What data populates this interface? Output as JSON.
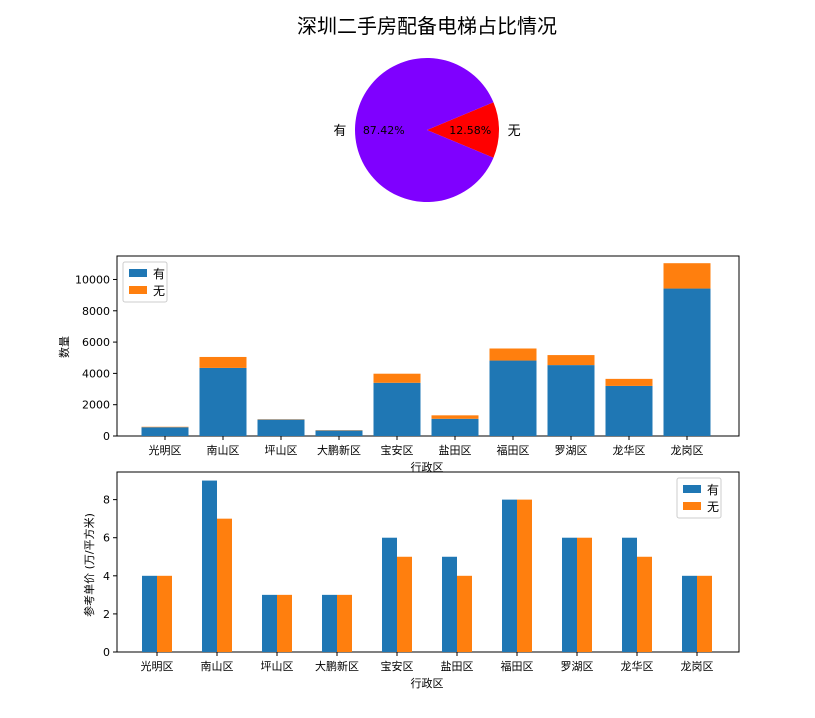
{
  "chart_data": [
    {
      "type": "pie",
      "title": "深圳二手房配备电梯占比情况",
      "labels": [
        "有",
        "无"
      ],
      "values": [
        87.42,
        12.58
      ],
      "value_labels": [
        "87.42%",
        "12.58%"
      ],
      "colors": [
        "#7f00ff",
        "#ff0000"
      ]
    },
    {
      "type": "bar",
      "stacked": true,
      "categories": [
        "光明区",
        "南山区",
        "坪山区",
        "大鹏新区",
        "宝安区",
        "盐田区",
        "福田区",
        "罗湖区",
        "龙华区",
        "龙岗区"
      ],
      "series": [
        {
          "name": "有",
          "color": "#1f77b4",
          "values": [
            560,
            4350,
            1050,
            350,
            3400,
            1100,
            4820,
            4530,
            3200,
            9420
          ]
        },
        {
          "name": "无",
          "color": "#ff7f0e",
          "values": [
            30,
            700,
            20,
            20,
            580,
            220,
            770,
            640,
            450,
            1620
          ]
        }
      ],
      "xlabel": "行政区",
      "ylabel": "数量",
      "ylim": [
        0,
        11500
      ],
      "yticks": [
        "0",
        "2000",
        "4000",
        "6000",
        "8000",
        "10000"
      ],
      "legend": "top-left"
    },
    {
      "type": "bar",
      "grouped": true,
      "categories": [
        "光明区",
        "南山区",
        "坪山区",
        "大鹏新区",
        "宝安区",
        "盐田区",
        "福田区",
        "罗湖区",
        "龙华区",
        "龙岗区"
      ],
      "series": [
        {
          "name": "有",
          "color": "#1f77b4",
          "values": [
            4,
            9,
            3,
            3,
            6,
            5,
            8,
            6,
            6,
            4
          ]
        },
        {
          "name": "无",
          "color": "#ff7f0e",
          "values": [
            4,
            7,
            3,
            3,
            5,
            4,
            8,
            6,
            5,
            4
          ]
        }
      ],
      "xlabel": "行政区",
      "ylabel": "参考单价 (万/平方米)",
      "ylim": [
        0,
        9.45
      ],
      "yticks": [
        "0",
        "2",
        "4",
        "6",
        "8"
      ],
      "legend": "top-right"
    }
  ]
}
